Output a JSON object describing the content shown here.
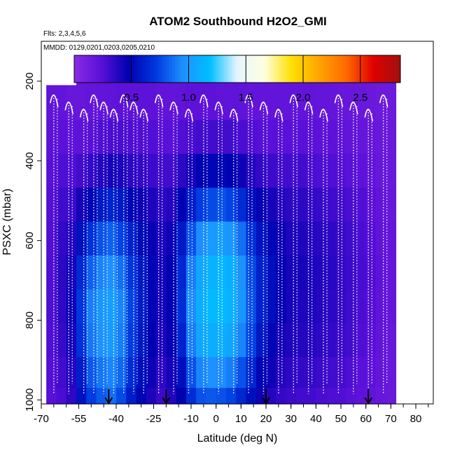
{
  "chart_data": {
    "type": "heatmap",
    "title": "ATOM2 Southbound H2O2_GMI",
    "subtitle_flights": "Flts: 2,3,4,5,6",
    "subtitle_dates": "MMDD: 0129,0201,0203,0205,0210",
    "xlabel": "Latitude (deg N)",
    "ylabel": "PSXC (mbar)",
    "xlim": [
      -70,
      87
    ],
    "ylim": [
      1010,
      100
    ],
    "x_ticks": [
      "-70",
      "-55",
      "-40",
      "-25",
      "-10",
      "0",
      "10",
      "20",
      "30",
      "40",
      "50",
      "60",
      "70",
      "80"
    ],
    "x_tick_values": [
      -70,
      -55,
      -40,
      -25,
      -10,
      0,
      10,
      20,
      30,
      40,
      50,
      60,
      70,
      80
    ],
    "y_ticks": [
      "200",
      "400",
      "600",
      "800",
      "1000"
    ],
    "y_tick_values": [
      200,
      400,
      600,
      800,
      1000
    ],
    "colorbar": {
      "ticks": [
        "0.5",
        "1.0",
        "1.5",
        "2.0",
        "2.5"
      ],
      "tick_values": [
        0.5,
        1.0,
        1.5,
        2.0,
        2.5
      ],
      "range": [
        0,
        2.85
      ],
      "colors": [
        "#8a2be2",
        "#5a10d8",
        "#0000b0",
        "#0038e0",
        "#1e90ff",
        "#00bfff",
        "#e6f6ff",
        "#ffffe0",
        "#ffe000",
        "#ffa500",
        "#ff6a00",
        "#e00000",
        "#a01010"
      ]
    },
    "data_lat_range": [
      -68,
      71
    ],
    "data_p_range": [
      210,
      1010
    ],
    "arrow_latitudes": [
      -43,
      -20,
      20,
      61
    ],
    "profile_latitudes": [
      -65,
      -59,
      -53,
      -49,
      -45,
      -41,
      -37,
      -33,
      -29,
      -23,
      -17,
      -11,
      -5,
      1,
      7,
      13,
      19,
      25,
      31,
      37,
      43,
      49,
      55,
      61,
      67
    ],
    "columns": [
      {
        "lat": -66,
        "values": [
          0.2,
          0.22,
          0.24,
          0.25,
          0.26,
          0.27,
          0.27,
          0.26,
          0.25,
          0.24
        ]
      },
      {
        "lat": -62,
        "values": [
          0.2,
          0.23,
          0.27,
          0.31,
          0.34,
          0.36,
          0.35,
          0.33,
          0.3,
          0.28
        ]
      },
      {
        "lat": -58,
        "values": [
          0.18,
          0.21,
          0.26,
          0.32,
          0.38,
          0.42,
          0.44,
          0.42,
          0.38,
          0.35
        ]
      },
      {
        "lat": -54,
        "values": [
          0.18,
          0.22,
          0.3,
          0.42,
          0.55,
          0.65,
          0.7,
          0.68,
          0.6,
          0.55
        ]
      },
      {
        "lat": -50,
        "values": [
          0.19,
          0.24,
          0.34,
          0.5,
          0.68,
          0.82,
          0.9,
          0.88,
          0.8,
          0.72
        ]
      },
      {
        "lat": -46,
        "values": [
          0.2,
          0.26,
          0.38,
          0.58,
          0.78,
          0.92,
          0.98,
          0.96,
          0.88,
          0.8
        ]
      },
      {
        "lat": -42,
        "values": [
          0.21,
          0.28,
          0.42,
          0.62,
          0.82,
          0.95,
          1.02,
          1.0,
          0.92,
          0.86
        ]
      },
      {
        "lat": -38,
        "values": [
          0.22,
          0.28,
          0.4,
          0.58,
          0.74,
          0.86,
          0.92,
          0.9,
          0.84,
          0.76
        ]
      },
      {
        "lat": -34,
        "values": [
          0.22,
          0.27,
          0.36,
          0.5,
          0.62,
          0.7,
          0.74,
          0.72,
          0.66,
          0.6
        ]
      },
      {
        "lat": -30,
        "values": [
          0.22,
          0.26,
          0.34,
          0.44,
          0.52,
          0.58,
          0.6,
          0.58,
          0.54,
          0.5
        ]
      },
      {
        "lat": -26,
        "values": [
          0.22,
          0.26,
          0.32,
          0.4,
          0.46,
          0.5,
          0.5,
          0.48,
          0.44,
          0.4
        ]
      },
      {
        "lat": -22,
        "values": [
          0.2,
          0.24,
          0.3,
          0.36,
          0.4,
          0.42,
          0.42,
          0.4,
          0.36,
          0.32
        ]
      },
      {
        "lat": -18,
        "values": [
          0.2,
          0.24,
          0.3,
          0.38,
          0.44,
          0.48,
          0.48,
          0.46,
          0.42,
          0.38
        ]
      },
      {
        "lat": -14,
        "values": [
          0.21,
          0.26,
          0.36,
          0.48,
          0.58,
          0.64,
          0.66,
          0.62,
          0.54,
          0.48
        ]
      },
      {
        "lat": -10,
        "values": [
          0.22,
          0.28,
          0.42,
          0.6,
          0.78,
          0.9,
          0.94,
          0.9,
          0.78,
          0.66
        ]
      },
      {
        "lat": -6,
        "values": [
          0.22,
          0.3,
          0.48,
          0.72,
          0.94,
          1.06,
          1.1,
          1.06,
          0.92,
          0.78
        ]
      },
      {
        "lat": -2,
        "values": [
          0.22,
          0.3,
          0.5,
          0.76,
          1.0,
          1.12,
          1.16,
          1.1,
          0.96,
          0.8
        ]
      },
      {
        "lat": 2,
        "values": [
          0.21,
          0.3,
          0.5,
          0.78,
          1.02,
          1.14,
          1.16,
          1.1,
          0.94,
          0.78
        ]
      },
      {
        "lat": 6,
        "values": [
          0.21,
          0.3,
          0.48,
          0.74,
          0.98,
          1.1,
          1.12,
          1.06,
          0.9,
          0.74
        ]
      },
      {
        "lat": 10,
        "values": [
          0.21,
          0.28,
          0.44,
          0.66,
          0.86,
          0.96,
          0.98,
          0.92,
          0.78,
          0.64
        ]
      },
      {
        "lat": 14,
        "values": [
          0.2,
          0.26,
          0.38,
          0.54,
          0.68,
          0.76,
          0.78,
          0.74,
          0.64,
          0.54
        ]
      },
      {
        "lat": 18,
        "values": [
          0.2,
          0.25,
          0.34,
          0.46,
          0.56,
          0.62,
          0.62,
          0.58,
          0.5,
          0.44
        ]
      },
      {
        "lat": 22,
        "values": [
          0.2,
          0.24,
          0.32,
          0.42,
          0.5,
          0.54,
          0.54,
          0.5,
          0.44,
          0.38
        ]
      },
      {
        "lat": 26,
        "values": [
          0.2,
          0.24,
          0.3,
          0.38,
          0.44,
          0.46,
          0.46,
          0.42,
          0.38,
          0.34
        ]
      },
      {
        "lat": 30,
        "values": [
          0.2,
          0.24,
          0.3,
          0.36,
          0.4,
          0.42,
          0.42,
          0.4,
          0.36,
          0.32
        ]
      },
      {
        "lat": 34,
        "values": [
          0.2,
          0.24,
          0.3,
          0.36,
          0.4,
          0.42,
          0.4,
          0.38,
          0.34,
          0.3
        ]
      },
      {
        "lat": 38,
        "values": [
          0.2,
          0.23,
          0.28,
          0.34,
          0.38,
          0.4,
          0.4,
          0.38,
          0.34,
          0.3
        ]
      },
      {
        "lat": 42,
        "values": [
          0.19,
          0.22,
          0.27,
          0.33,
          0.37,
          0.39,
          0.38,
          0.36,
          0.32,
          0.28
        ]
      },
      {
        "lat": 46,
        "values": [
          0.19,
          0.22,
          0.26,
          0.31,
          0.35,
          0.37,
          0.36,
          0.34,
          0.3,
          0.27
        ]
      },
      {
        "lat": 50,
        "values": [
          0.18,
          0.21,
          0.25,
          0.3,
          0.33,
          0.34,
          0.34,
          0.32,
          0.29,
          0.26
        ]
      },
      {
        "lat": 54,
        "values": [
          0.18,
          0.2,
          0.24,
          0.28,
          0.31,
          0.32,
          0.31,
          0.3,
          0.27,
          0.24
        ]
      },
      {
        "lat": 58,
        "values": [
          0.17,
          0.19,
          0.22,
          0.26,
          0.28,
          0.29,
          0.28,
          0.27,
          0.24,
          0.22
        ]
      },
      {
        "lat": 62,
        "values": [
          0.16,
          0.18,
          0.2,
          0.23,
          0.25,
          0.26,
          0.25,
          0.24,
          0.22,
          0.2
        ]
      },
      {
        "lat": 66,
        "values": [
          0.15,
          0.17,
          0.18,
          0.2,
          0.21,
          0.22,
          0.21,
          0.2,
          0.19,
          0.18
        ]
      },
      {
        "lat": 70,
        "values": [
          0.15,
          0.16,
          0.17,
          0.18,
          0.19,
          0.19,
          0.19,
          0.18,
          0.17,
          0.16
        ]
      }
    ],
    "levels_mbar": [
      255,
      340,
      425,
      510,
      595,
      680,
      765,
      850,
      935,
      1005
    ]
  }
}
